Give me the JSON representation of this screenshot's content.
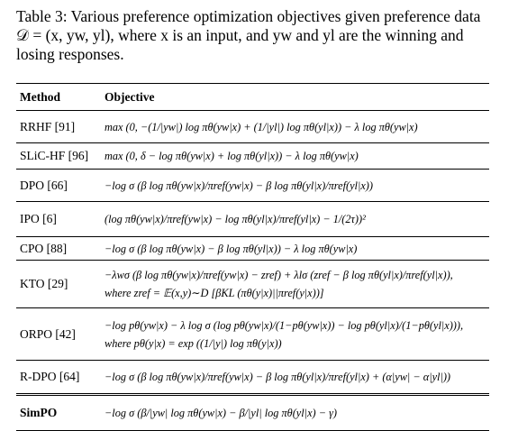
{
  "caption": "Table 3: Various preference optimization objectives given preference data 𝒟 = (x, yw, yl), where x is an input, and yw and yl are the winning and losing responses.",
  "table": {
    "header": [
      "Method",
      "Objective"
    ],
    "rows": [
      {
        "method": "RRHF [91]",
        "objective": [
          "max (0, −(1/|yw|) log πθ(yw|x) + (1/|yl|) log πθ(yl|x)) − λ log πθ(yw|x)"
        ]
      },
      {
        "method": "SLiC-HF [96]",
        "objective": [
          "max (0, δ − log πθ(yw|x) + log πθ(yl|x)) − λ log πθ(yw|x)"
        ]
      },
      {
        "method": "DPO [66]",
        "objective": [
          "−log σ (β log πθ(yw|x)/πref(yw|x) − β log πθ(yl|x)/πref(yl|x))"
        ]
      },
      {
        "method": "IPO [6]",
        "objective": [
          "(log πθ(yw|x)/πref(yw|x) − log πθ(yl|x)/πref(yl|x) − 1/(2τ))²"
        ]
      },
      {
        "method": "CPO [88]",
        "objective": [
          "−log σ (β log πθ(yw|x) − β log πθ(yl|x)) − λ log πθ(yw|x)"
        ]
      },
      {
        "method": "KTO [29]",
        "objective": [
          "−λwσ (β log πθ(yw|x)/πref(yw|x) − zref) + λlσ (zref − β log πθ(yl|x)/πref(yl|x)),",
          "where zref = 𝔼(x,y)∼D [βKL (πθ(y|x)||πref(y|x))]"
        ]
      },
      {
        "method": "ORPO [42]",
        "objective": [
          "−log pθ(yw|x) − λ log σ (log pθ(yw|x)/(1−pθ(yw|x)) − log pθ(yl|x)/(1−pθ(yl|x))),",
          "where pθ(y|x) = exp ((1/|y|) log πθ(y|x))"
        ]
      },
      {
        "method": "R-DPO [64]",
        "objective": [
          "−log σ (β log πθ(yw|x)/πref(yw|x) − β log πθ(yl|x)/πref(yl|x) + (α|yw| − α|yl|))"
        ]
      },
      {
        "method": "SimPO",
        "objective": [
          "−log σ (β/|yw| log πθ(yw|x) − β/|yl| log πθ(yl|x) − γ)"
        ]
      }
    ]
  }
}
